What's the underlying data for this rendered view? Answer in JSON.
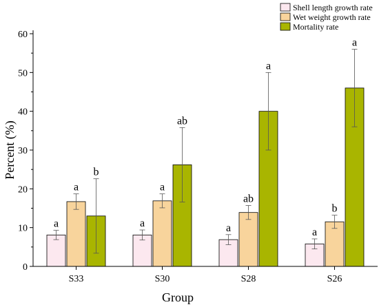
{
  "chart_data": {
    "type": "bar",
    "title": "",
    "xlabel": "Group",
    "ylabel": "Percent (%)",
    "categories": [
      "S33",
      "S30",
      "S28",
      "S26"
    ],
    "ylim": [
      0,
      60
    ],
    "yticks": [
      0,
      10,
      20,
      30,
      40,
      50,
      60
    ],
    "grid": false,
    "legend_position": "top-right",
    "series": [
      {
        "name": "Shell length growth rate",
        "color": "#fce8ef",
        "values": [
          8.1,
          8.1,
          6.9,
          5.8
        ],
        "errors": [
          1.2,
          1.3,
          1.3,
          1.3
        ],
        "labels": [
          "a",
          "a",
          "a",
          "a"
        ]
      },
      {
        "name": "Wet weight growth rate",
        "color": "#f8d49c",
        "values": [
          16.7,
          16.9,
          13.9,
          11.5
        ],
        "errors": [
          2.0,
          1.8,
          1.8,
          1.7
        ],
        "labels": [
          "a",
          "a",
          "ab",
          "b"
        ]
      },
      {
        "name": "Mortality rate",
        "color": "#a9b500",
        "values": [
          13.0,
          26.2,
          40.0,
          46.0
        ],
        "errors": [
          9.6,
          9.6,
          10.0,
          10.0
        ],
        "labels": [
          "b",
          "ab",
          "a",
          "a"
        ]
      }
    ]
  }
}
